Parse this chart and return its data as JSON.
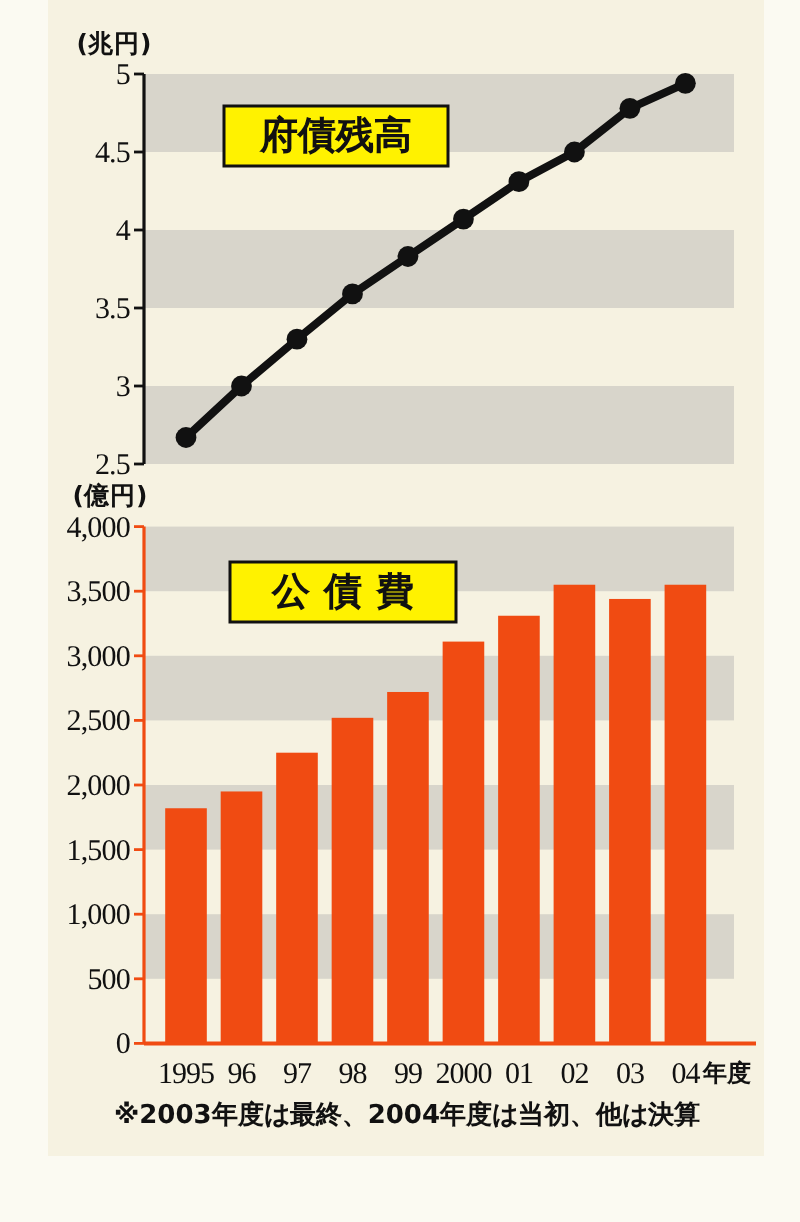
{
  "chart_data": [
    {
      "type": "line",
      "title": "府債残高",
      "ylabel": "(兆円)",
      "categories": [
        "1995",
        "96",
        "97",
        "98",
        "99",
        "2000",
        "01",
        "02",
        "03",
        "04"
      ],
      "values": [
        2.67,
        3.0,
        3.3,
        3.59,
        3.83,
        4.07,
        4.31,
        4.5,
        4.78,
        4.94
      ],
      "color": "#111111",
      "marker": "circle",
      "line_style": "solid",
      "ylim": [
        2.5,
        5
      ],
      "yticks": [
        2.5,
        3,
        3.5,
        4,
        4.5,
        5
      ],
      "tick_labels": "y",
      "bands": [
        {
          "axis": "y",
          "from": 2.5,
          "to": 3,
          "color": "#d8d5cb"
        },
        {
          "axis": "y",
          "from": 3.5,
          "to": 4,
          "color": "#d8d5cb"
        },
        {
          "axis": "y",
          "from": 4.5,
          "to": 5,
          "color": "#d8d5cb"
        }
      ]
    },
    {
      "type": "bar",
      "title": "公債費",
      "ylabel": "(億円)",
      "xlabel": "年度",
      "categories": [
        "1995",
        "96",
        "97",
        "98",
        "99",
        "2000",
        "01",
        "02",
        "03",
        "04"
      ],
      "values": [
        1820,
        1950,
        2250,
        2520,
        2720,
        3110,
        3310,
        3550,
        3440,
        3550
      ],
      "color": "#f04b12",
      "ylim": [
        0,
        4000
      ],
      "yticks": [
        0,
        500,
        {
          "value": 1000,
          "label": "1,000"
        },
        {
          "value": 1500,
          "label": "1,500"
        },
        {
          "value": 2000,
          "label": "2,000"
        },
        {
          "value": 2500,
          "label": "2,500"
        },
        {
          "value": 3000,
          "label": "3,000"
        },
        {
          "value": 3500,
          "label": "3,500"
        },
        {
          "value": 4000,
          "label": "4,000"
        }
      ],
      "bands": [
        {
          "axis": "y",
          "from": 500,
          "to": 1000,
          "color": "#d8d5cb"
        },
        {
          "axis": "y",
          "from": 1500,
          "to": 2000,
          "color": "#d8d5cb"
        },
        {
          "axis": "y",
          "from": 2500,
          "to": 3000,
          "color": "#d8d5cb"
        },
        {
          "axis": "y",
          "from": 3500,
          "to": 4000,
          "color": "#d8d5cb"
        }
      ],
      "annotations": [
        "※2003年度は最終、2004年度は当初、他は決算"
      ]
    }
  ]
}
